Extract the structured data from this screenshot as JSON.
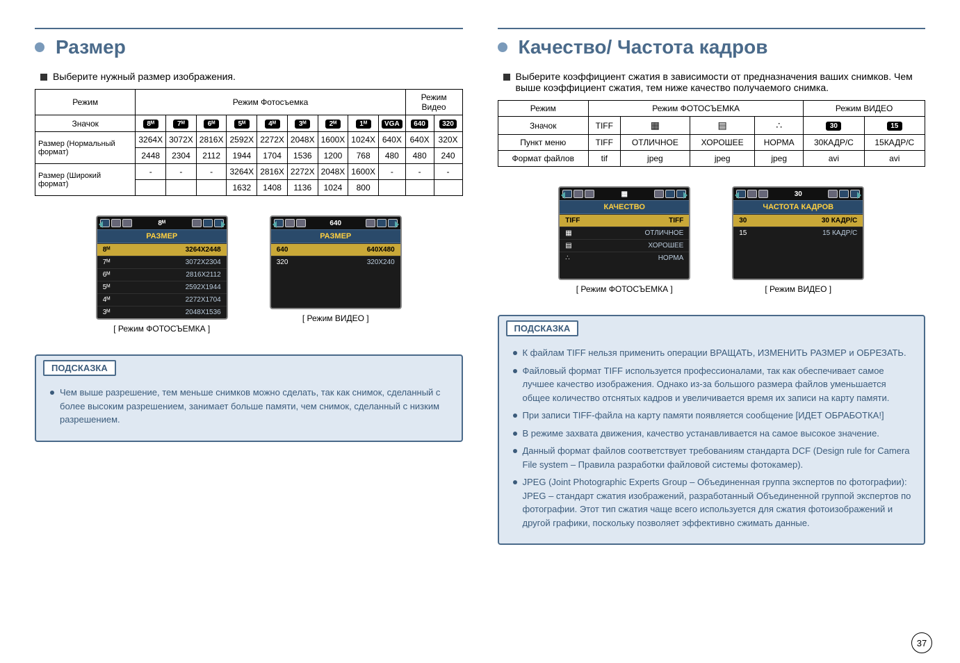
{
  "page_number": "37",
  "left": {
    "title": "Размер",
    "intro": "Выберите нужный размер изображения.",
    "table": {
      "mode_label": "Режим",
      "photo_mode": "Режим Фотосъемка",
      "video_mode": "Режим Видео",
      "icon_label": "Значок",
      "badges": [
        "8ᴹ",
        "7ᴹ",
        "6ᴹ",
        "5ᴹ",
        "4ᴹ",
        "3ᴹ",
        "2ᴹ",
        "1ᴹ",
        "VGA",
        "640",
        "320"
      ],
      "row_normal_label": "Размер (Нормальный формат)",
      "normal_top": [
        "3264X",
        "3072X",
        "2816X",
        "2592X",
        "2272X",
        "2048X",
        "1600X",
        "1024X",
        "640X",
        "640X",
        "320X"
      ],
      "normal_bottom": [
        "2448",
        "2304",
        "2112",
        "1944",
        "1704",
        "1536",
        "1200",
        "768",
        "480",
        "480",
        "240"
      ],
      "row_wide_label": "Размер (Широкий формат)",
      "wide_top": [
        "-",
        "-",
        "-",
        "3264X",
        "2816X",
        "2272X",
        "2048X",
        "1600X",
        "-",
        "-",
        "-"
      ],
      "wide_bottom": [
        "",
        "",
        "",
        "1632",
        "1408",
        "1136",
        "1024",
        "800",
        "",
        "",
        ""
      ]
    },
    "screens": {
      "photo": {
        "caption": "[ Режим ФОТОСЪЕМКА ]",
        "bar": "РАЗМЕР",
        "center_badge": "8ᴹ",
        "rows": [
          {
            "l": "8ᴹ",
            "r": "3264X2448",
            "hl": true
          },
          {
            "l": "7ᴹ",
            "r": "3072X2304"
          },
          {
            "l": "6ᴹ",
            "r": "2816X2112"
          },
          {
            "l": "5ᴹ",
            "r": "2592X1944"
          },
          {
            "l": "4ᴹ",
            "r": "2272X1704"
          },
          {
            "l": "3ᴹ",
            "r": "2048X1536"
          }
        ]
      },
      "video": {
        "caption": "[ Режим ВИДЕО ]",
        "bar": "РАЗМЕР",
        "center_badge": "640",
        "rows": [
          {
            "l": "640",
            "r": "640X480",
            "hl": true
          },
          {
            "l": "320",
            "r": "320X240"
          }
        ]
      }
    },
    "tip_label": "ПОДСКАЗКА",
    "tips": [
      "Чем выше разрешение, тем меньше снимков можно сделать, так как снимок, сделанный с более высоким разрешением, занимает больше памяти, чем снимок, сделанный с низким разрешением."
    ]
  },
  "right": {
    "title": "Качество/ Частота кадров",
    "intro": "Выберите коэффициент сжатия в зависимости от предназначения ваших снимков. Чем выше коэффициент сжатия, тем ниже качество получаемого снимка.",
    "table": {
      "mode_label": "Режим",
      "photo_mode": "Режим ФОТОСЪЕМКА",
      "video_mode": "Режим ВИДЕО",
      "icon_label": "Значок",
      "row_menu_label": "Пункт меню",
      "row_format_label": "Формат файлов",
      "icons": [
        "TIFF",
        "▦",
        "▤",
        "∴",
        "30",
        "15"
      ],
      "menu": [
        "TIFF",
        "ОТЛИЧНОЕ",
        "ХОРОШЕЕ",
        "НОРМА",
        "30КАДР/С",
        "15КАДР/С"
      ],
      "format": [
        "tif",
        "jpeg",
        "jpeg",
        "jpeg",
        "avi",
        "avi"
      ]
    },
    "screens": {
      "photo": {
        "caption": "[ Режим ФОТОСЪЕМКА ]",
        "bar": "КАЧЕСТВО",
        "center_badge": "▦",
        "rows": [
          {
            "l": "TIFF",
            "r": "TIFF",
            "hl": true
          },
          {
            "l": "▦",
            "r": "ОТЛИЧНОЕ"
          },
          {
            "l": "▤",
            "r": "ХОРОШЕЕ"
          },
          {
            "l": "∴",
            "r": "НОРМА"
          }
        ]
      },
      "video": {
        "caption": "[ Режим ВИДЕО ]",
        "bar": "ЧАСТОТА КАДРОВ",
        "center_badge": "30",
        "rows": [
          {
            "l": "30",
            "r": "30 КАДР/С",
            "hl": true
          },
          {
            "l": "15",
            "r": "15 КАДР/С"
          }
        ]
      }
    },
    "tip_label": "ПОДСКАЗКА",
    "tips": [
      "К файлам TIFF нельзя применить операции ВРАЩАТЬ, ИЗМЕНИТЬ РАЗМЕР и ОБРЕЗАТЬ.",
      "Файловый формат TIFF используется профессионалами, так как обеспечивает самое лучшее качество изображения. Однако из-за большого размера файлов уменьшается общее количество отснятых кадров и увеличивается время их записи на карту памяти.",
      "При записи TIFF-файла на карту памяти появляется сообщение [ИДЕТ ОБРАБОТКА!]",
      "В режиме захвата движения, качество устанавливается на самое высокое значение.",
      "Данный формат файлов соответствует требованиям стандарта DCF (Design rule for Camera File system – Правила разработки файловой системы фотокамер).",
      "JPEG (Joint Photographic Experts Group – Объединенная группа экспертов по фотографии): JPEG – стандарт сжатия изображений, разработанный Объединенной группой экспертов по фотографии. Этот тип сжатия чаще всего используется для сжатия фотоизображений и другой графики, поскольку позволяет эффективно сжимать данные."
    ]
  }
}
